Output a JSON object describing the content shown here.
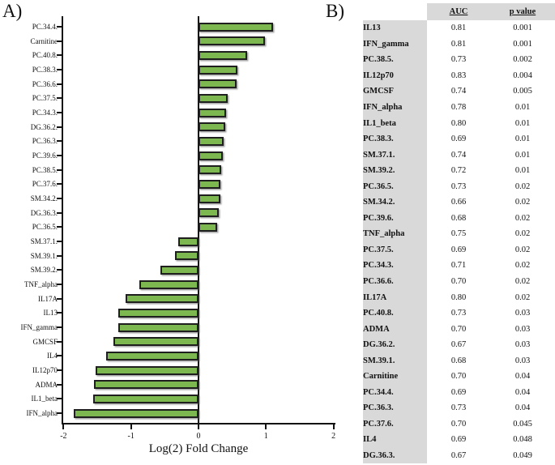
{
  "panel_a": {
    "label": "A)"
  },
  "panel_b": {
    "label": "B)",
    "table": {
      "columns": [
        "AUC",
        "p value"
      ],
      "rows": [
        {
          "name": "IL13",
          "auc": "0.81",
          "p": "0.001"
        },
        {
          "name": "IFN_gamma",
          "auc": "0.81",
          "p": "0.001"
        },
        {
          "name": "PC.38.5.",
          "auc": "0.73",
          "p": "0.002"
        },
        {
          "name": "IL12p70",
          "auc": "0.83",
          "p": "0.004"
        },
        {
          "name": "GMCSF",
          "auc": "0.74",
          "p": "0.005"
        },
        {
          "name": "IFN_alpha",
          "auc": "0.78",
          "p": "0.01"
        },
        {
          "name": "IL1_beta",
          "auc": "0.80",
          "p": "0.01"
        },
        {
          "name": "PC.38.3.",
          "auc": "0.69",
          "p": "0.01"
        },
        {
          "name": "SM.37.1.",
          "auc": "0.74",
          "p": "0.01"
        },
        {
          "name": "SM.39.2.",
          "auc": "0.72",
          "p": "0.01"
        },
        {
          "name": "PC.36.5.",
          "auc": "0.73",
          "p": "0.02"
        },
        {
          "name": "SM.34.2.",
          "auc": "0.66",
          "p": "0.02"
        },
        {
          "name": "PC.39.6.",
          "auc": "0.68",
          "p": "0.02"
        },
        {
          "name": "TNF_alpha",
          "auc": "0.75",
          "p": "0.02"
        },
        {
          "name": "PC.37.5.",
          "auc": "0.69",
          "p": "0.02"
        },
        {
          "name": "PC.34.3.",
          "auc": "0.71",
          "p": "0.02"
        },
        {
          "name": "PC.36.6.",
          "auc": "0.70",
          "p": "0.02"
        },
        {
          "name": "IL17A",
          "auc": "0.80",
          "p": "0.02"
        },
        {
          "name": "PC.40.8.",
          "auc": "0.73",
          "p": "0.03"
        },
        {
          "name": "ADMA",
          "auc": "0.70",
          "p": "0.03"
        },
        {
          "name": "DG.36.2.",
          "auc": "0.67",
          "p": "0.03"
        },
        {
          "name": "SM.39.1.",
          "auc": "0.68",
          "p": "0.03"
        },
        {
          "name": "Carnitine",
          "auc": "0.70",
          "p": "0.04"
        },
        {
          "name": "PC.34.4.",
          "auc": "0.69",
          "p": "0.04"
        },
        {
          "name": "PC.36.3.",
          "auc": "0.73",
          "p": "0.04"
        },
        {
          "name": "PC.37.6.",
          "auc": "0.70",
          "p": "0.045"
        },
        {
          "name": "IL4",
          "auc": "0.69",
          "p": "0.048"
        },
        {
          "name": "DG.36.3.",
          "auc": "0.67",
          "p": "0.049"
        }
      ]
    }
  },
  "chart_data": {
    "type": "bar",
    "orientation": "horizontal",
    "title": "",
    "xlabel": "Log(2) Fold Change",
    "ylabel": "",
    "xlim": [
      -2,
      2
    ],
    "xticks": [
      -2,
      -1,
      0,
      1,
      2
    ],
    "grid": false,
    "legend": false,
    "bar_color": "#7CB84F",
    "bar_border_color": "#1f1f1f",
    "categories": [
      "PC.34.4.",
      "Carnitine",
      "PC.40.8.",
      "PC.38.3.",
      "PC.36.6.",
      "PC.37.5.",
      "PC.34.3.",
      "DG.36.2.",
      "PC.36.3.",
      "PC.39.6.",
      "PC.38.5.",
      "PC.37.6.",
      "SM.34.2.",
      "DG.36.3.",
      "PC.36.5.",
      "SM.37.1.",
      "SM.39.1.",
      "SM.39.2.",
      "TNF_alpha",
      "IL17A",
      "IL13",
      "IFN_gamma",
      "GMCSF",
      "IL4",
      "IL12p70",
      "ADMA",
      "IL1_beta",
      "IFN_alpha"
    ],
    "values": [
      1.1,
      0.98,
      0.72,
      0.58,
      0.56,
      0.43,
      0.41,
      0.4,
      0.37,
      0.36,
      0.34,
      0.33,
      0.32,
      0.3,
      0.28,
      -0.3,
      -0.35,
      -0.56,
      -0.88,
      -1.08,
      -1.19,
      -1.19,
      -1.26,
      -1.37,
      -1.53,
      -1.55,
      -1.56,
      -1.85
    ]
  }
}
